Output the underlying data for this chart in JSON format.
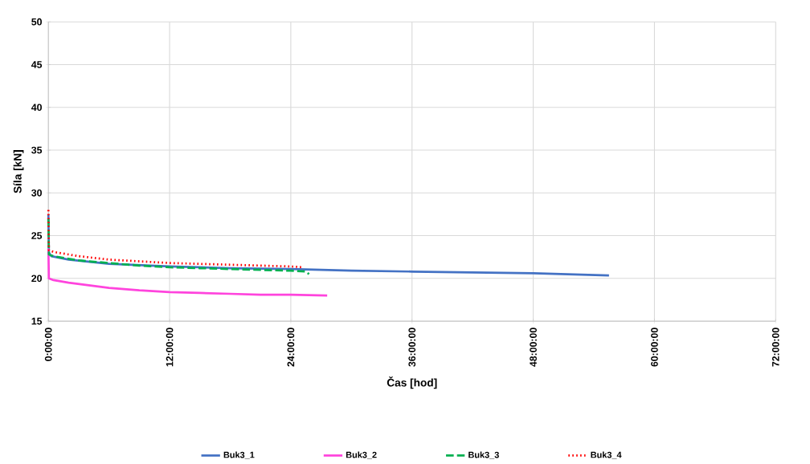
{
  "chart_data": {
    "type": "line",
    "xlabel": "Čas [hod]",
    "ylabel": "Síla [kN]",
    "xlim": [
      0,
      72
    ],
    "ylim": [
      15,
      50
    ],
    "xticks": [
      {
        "value": 0,
        "label": "0:00:00"
      },
      {
        "value": 12,
        "label": "12:00:00"
      },
      {
        "value": 24,
        "label": "24:00:00"
      },
      {
        "value": 36,
        "label": "36:00:00"
      },
      {
        "value": 48,
        "label": "48:00:00"
      },
      {
        "value": 60,
        "label": "60:00:00"
      },
      {
        "value": 72,
        "label": "72:00:00"
      }
    ],
    "yticks": [
      15,
      20,
      25,
      30,
      35,
      40,
      45,
      50
    ],
    "grid": true,
    "legend": "bottom",
    "series": [
      {
        "name": "Buk3_1",
        "color": "#4472c4",
        "line_style": "solid",
        "x": [
          0,
          0.05,
          0.3,
          2,
          6,
          12,
          18,
          24,
          30,
          36,
          42,
          48,
          55.5
        ],
        "values": [
          27.5,
          23.0,
          22.6,
          22.2,
          21.7,
          21.4,
          21.2,
          21.1,
          20.9,
          20.8,
          20.7,
          20.6,
          20.35
        ]
      },
      {
        "name": "Buk3_2",
        "color": "#ff44dd",
        "line_style": "solid",
        "x": [
          0,
          0.05,
          0.5,
          2,
          4,
          6,
          9,
          12,
          15,
          18,
          21,
          24,
          27.6
        ],
        "values": [
          23.5,
          20.0,
          19.8,
          19.5,
          19.2,
          18.9,
          18.6,
          18.4,
          18.3,
          18.2,
          18.1,
          18.1,
          18.0
        ]
      },
      {
        "name": "Buk3_3",
        "color": "#00b050",
        "line_style": "dashed",
        "x": [
          0,
          0.05,
          0.5,
          3,
          6,
          9,
          12,
          15,
          18,
          21,
          24,
          25.5,
          25.8
        ],
        "values": [
          27.0,
          22.8,
          22.6,
          22.1,
          21.8,
          21.5,
          21.3,
          21.2,
          21.1,
          21.0,
          20.9,
          20.8,
          20.5
        ]
      },
      {
        "name": "Buk3_4",
        "color": "#ff0000",
        "line_style": "dotted",
        "x": [
          0,
          0.05,
          0.5,
          3,
          6,
          9,
          12,
          15,
          18,
          21,
          24,
          25.2
        ],
        "values": [
          28.0,
          23.3,
          23.1,
          22.6,
          22.2,
          22.0,
          21.8,
          21.7,
          21.6,
          21.5,
          21.4,
          21.3
        ]
      }
    ]
  }
}
